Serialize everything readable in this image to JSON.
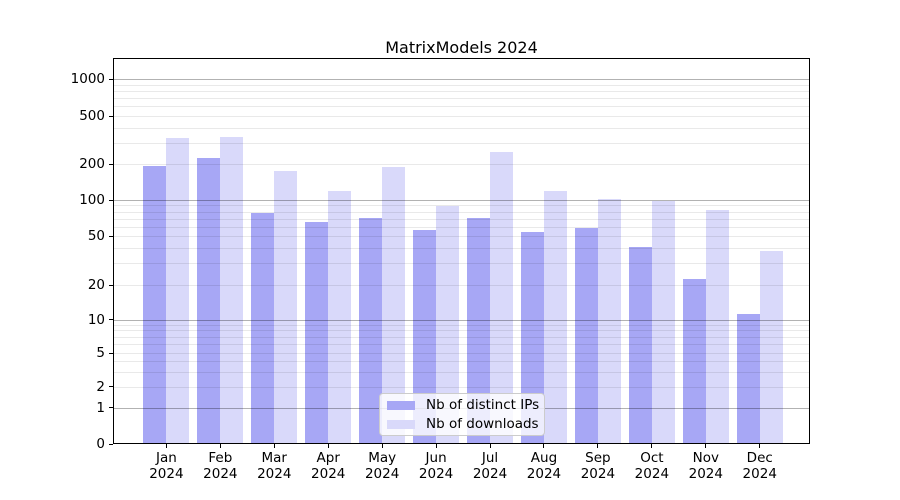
{
  "chart_data": {
    "type": "bar",
    "title": "MatrixModels 2024",
    "months": [
      "Jan",
      "Feb",
      "Mar",
      "Apr",
      "May",
      "Jun",
      "Jul",
      "Aug",
      "Sep",
      "Oct",
      "Nov",
      "Dec"
    ],
    "year": "2024",
    "series": [
      {
        "name": "Nb of distinct IPs",
        "color": "#a7a7f5",
        "values": [
          190,
          220,
          77,
          64,
          69,
          55,
          70,
          53,
          57,
          40,
          22,
          11
        ]
      },
      {
        "name": "Nb of downloads",
        "color": "#d9d9fa",
        "values": [
          320,
          330,
          170,
          117,
          185,
          88,
          247,
          116,
          100,
          96,
          81,
          37
        ]
      }
    ],
    "yticks": [
      "0",
      "1",
      "2",
      "5",
      "10",
      "20",
      "50",
      "100",
      "200",
      "500",
      "1000"
    ],
    "ytick_values": [
      0,
      1,
      2,
      5,
      10,
      20,
      50,
      100,
      200,
      500,
      1000
    ],
    "yscale": "asinh-log",
    "ylim": [
      0,
      1500
    ],
    "grid": "horizontal major+minor",
    "legend_position": "lower-center"
  },
  "colors": {
    "bar_distinct_ips": "#a7a7f5",
    "bar_downloads": "#d9d9fa",
    "grid_major": "rgba(0,0,0,0.30)",
    "grid_minor": "rgba(0,0,0,0.085)",
    "axis": "#000000",
    "background": "#ffffff"
  }
}
